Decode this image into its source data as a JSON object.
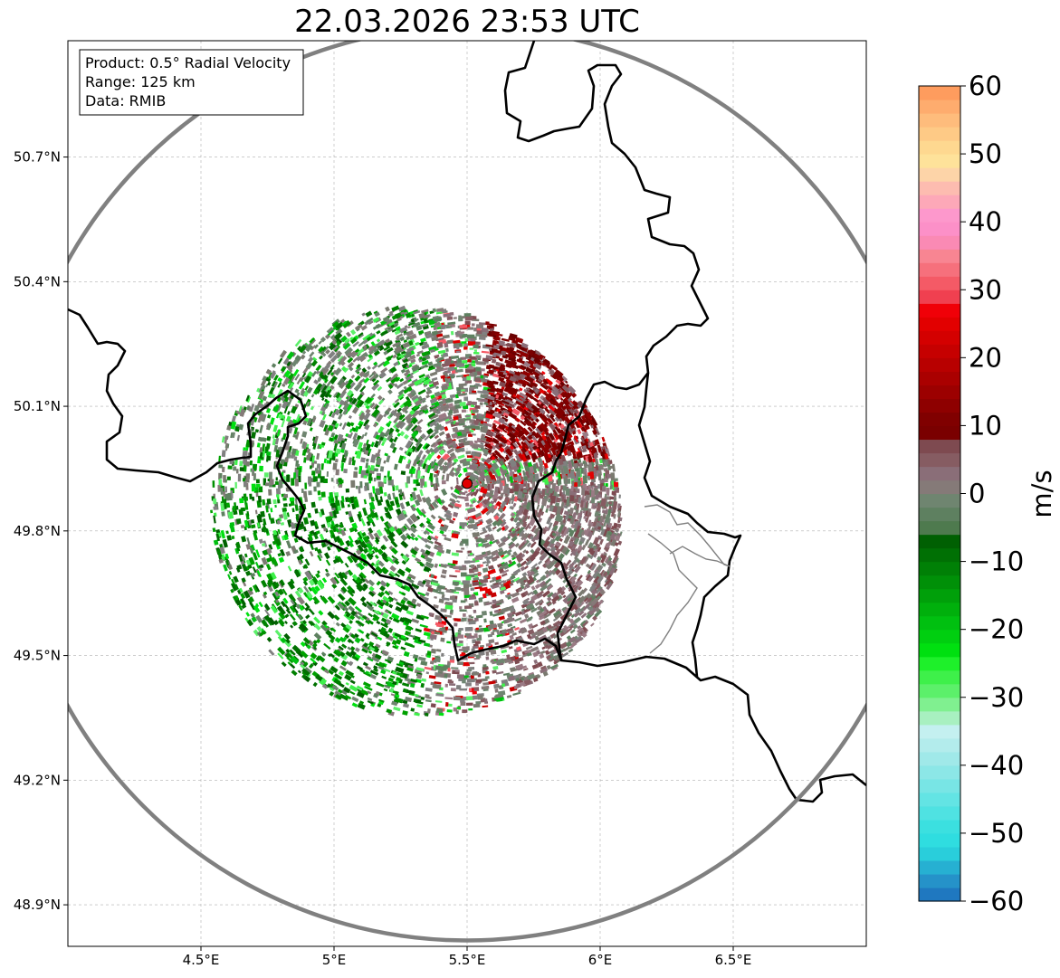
{
  "title": "22.03.2026 23:53 UTC",
  "info_box": {
    "lines": [
      "Product: 0.5° Radial Velocity",
      "Range: 125 km",
      "Data: RMIB"
    ]
  },
  "axes": {
    "lon_ticks": [
      {
        "value": 4.5,
        "label": "4.5°E"
      },
      {
        "value": 5.0,
        "label": "5°E"
      },
      {
        "value": 5.5,
        "label": "5.5°E"
      },
      {
        "value": 6.0,
        "label": "6°E"
      },
      {
        "value": 6.5,
        "label": "6.5°E"
      }
    ],
    "lat_ticks": [
      {
        "value": 50.7,
        "label": "50.7°N"
      },
      {
        "value": 50.4,
        "label": "50.4°N"
      },
      {
        "value": 50.1,
        "label": "50.1°N"
      },
      {
        "value": 49.8,
        "label": "49.8°N"
      },
      {
        "value": 49.5,
        "label": "49.5°N"
      },
      {
        "value": 49.2,
        "label": "49.2°N"
      },
      {
        "value": 48.9,
        "label": "48.9°N"
      }
    ],
    "lon_range": [
      4.0,
      7.0
    ],
    "lat_range": [
      48.8,
      50.98
    ]
  },
  "radar": {
    "site_lon": 5.5,
    "site_lat": 49.914,
    "range_km": 125,
    "site_marker_color": "#e00000",
    "range_ring_color": "#808080"
  },
  "colorbar": {
    "label": "m/s",
    "min": -60,
    "max": 60,
    "ticks": [
      {
        "value": 60,
        "label": "60"
      },
      {
        "value": 50,
        "label": "50"
      },
      {
        "value": 40,
        "label": "40"
      },
      {
        "value": 30,
        "label": "30"
      },
      {
        "value": 20,
        "label": "20"
      },
      {
        "value": 10,
        "label": "10"
      },
      {
        "value": 0,
        "label": "0"
      },
      {
        "value": -10,
        "label": "−10"
      },
      {
        "value": -20,
        "label": "−20"
      },
      {
        "value": -30,
        "label": "−30"
      },
      {
        "value": -40,
        "label": "−40"
      },
      {
        "value": -50,
        "label": "−50"
      },
      {
        "value": -60,
        "label": "−60"
      }
    ],
    "stops": [
      {
        "from": -60,
        "to": -58,
        "color": "#1f78c0"
      },
      {
        "from": -58,
        "to": -56,
        "color": "#2592c9"
      },
      {
        "from": -56,
        "to": -54,
        "color": "#26b0d2"
      },
      {
        "from": -54,
        "to": -52,
        "color": "#29cedb"
      },
      {
        "from": -52,
        "to": -50,
        "color": "#2fdde0"
      },
      {
        "from": -50,
        "to": -48,
        "color": "#3be0e0"
      },
      {
        "from": -48,
        "to": -46,
        "color": "#4fe2e2"
      },
      {
        "from": -46,
        "to": -44,
        "color": "#63e4e4"
      },
      {
        "from": -44,
        "to": -42,
        "color": "#78e5e5"
      },
      {
        "from": -42,
        "to": -40,
        "color": "#8ce7e7"
      },
      {
        "from": -40,
        "to": -38,
        "color": "#a0e9e9"
      },
      {
        "from": -38,
        "to": -36,
        "color": "#b3ecec"
      },
      {
        "from": -36,
        "to": -34,
        "color": "#c4f0f0"
      },
      {
        "from": -34,
        "to": -32,
        "color": "#a8f0c0"
      },
      {
        "from": -32,
        "to": -30,
        "color": "#80f090"
      },
      {
        "from": -30,
        "to": -28,
        "color": "#5cf06a"
      },
      {
        "from": -28,
        "to": -26,
        "color": "#3ef04a"
      },
      {
        "from": -26,
        "to": -24,
        "color": "#1ef02a"
      },
      {
        "from": -24,
        "to": -22,
        "color": "#00e010"
      },
      {
        "from": -22,
        "to": -20,
        "color": "#00cf10"
      },
      {
        "from": -20,
        "to": -18,
        "color": "#00c010"
      },
      {
        "from": -18,
        "to": -16,
        "color": "#00b00c"
      },
      {
        "from": -16,
        "to": -14,
        "color": "#00a00a"
      },
      {
        "from": -14,
        "to": -12,
        "color": "#009008"
      },
      {
        "from": -12,
        "to": -10,
        "color": "#008006"
      },
      {
        "from": -10,
        "to": -8,
        "color": "#007004"
      },
      {
        "from": -8,
        "to": -6,
        "color": "#006002"
      },
      {
        "from": -6,
        "to": -4,
        "color": "#4e7a4e"
      },
      {
        "from": -4,
        "to": -2,
        "color": "#5e8060"
      },
      {
        "from": -2,
        "to": 0,
        "color": "#6f8570"
      },
      {
        "from": 0,
        "to": 2,
        "color": "#857a78"
      },
      {
        "from": 2,
        "to": 4,
        "color": "#8a6e78"
      },
      {
        "from": 4,
        "to": 6,
        "color": "#865c62"
      },
      {
        "from": 6,
        "to": 8,
        "color": "#7e4a50"
      },
      {
        "from": 8,
        "to": 10,
        "color": "#7a0000"
      },
      {
        "from": 10,
        "to": 12,
        "color": "#800000"
      },
      {
        "from": 12,
        "to": 14,
        "color": "#8e0000"
      },
      {
        "from": 14,
        "to": 16,
        "color": "#9c0000"
      },
      {
        "from": 16,
        "to": 18,
        "color": "#aa0000"
      },
      {
        "from": 18,
        "to": 20,
        "color": "#b80000"
      },
      {
        "from": 20,
        "to": 22,
        "color": "#c60000"
      },
      {
        "from": 22,
        "to": 24,
        "color": "#d40000"
      },
      {
        "from": 24,
        "to": 26,
        "color": "#e20000"
      },
      {
        "from": 26,
        "to": 28,
        "color": "#f00008"
      },
      {
        "from": 28,
        "to": 30,
        "color": "#f04050"
      },
      {
        "from": 30,
        "to": 32,
        "color": "#f45a66"
      },
      {
        "from": 32,
        "to": 34,
        "color": "#f6707c"
      },
      {
        "from": 34,
        "to": 36,
        "color": "#f88592"
      },
      {
        "from": 36,
        "to": 38,
        "color": "#fa8ab4"
      },
      {
        "from": 38,
        "to": 40,
        "color": "#fc90c8"
      },
      {
        "from": 40,
        "to": 42,
        "color": "#fd98cc"
      },
      {
        "from": 42,
        "to": 44,
        "color": "#fda8b8"
      },
      {
        "from": 44,
        "to": 46,
        "color": "#fdbcb0"
      },
      {
        "from": 46,
        "to": 48,
        "color": "#fdd4a8"
      },
      {
        "from": 48,
        "to": 50,
        "color": "#fee29a"
      },
      {
        "from": 50,
        "to": 52,
        "color": "#fed890"
      },
      {
        "from": 52,
        "to": 54,
        "color": "#feca86"
      },
      {
        "from": 54,
        "to": 56,
        "color": "#febc7c"
      },
      {
        "from": 56,
        "to": 58,
        "color": "#feac6e"
      },
      {
        "from": 58,
        "to": 60,
        "color": "#fe9c5e"
      }
    ]
  },
  "colors": {
    "border": "#000000",
    "subborder": "#808080",
    "grid": "#b0b0b0",
    "frame": "#000000"
  }
}
